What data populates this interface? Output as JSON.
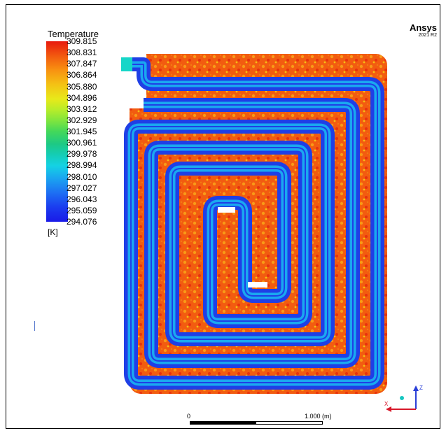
{
  "legend": {
    "title": "Temperature",
    "unit": "[K]",
    "ticks": [
      "309.815",
      "308.831",
      "307.847",
      "306.864",
      "305.880",
      "304.896",
      "303.912",
      "302.929",
      "301.945",
      "300.961",
      "299.978",
      "298.994",
      "298.010",
      "297.027",
      "296.043",
      "295.059",
      "294.076"
    ],
    "max": 309.815,
    "min": 294.076
  },
  "branding": {
    "name": "Ansys",
    "version": "2021 R2"
  },
  "scale_bar": {
    "start_label": "0",
    "end_label": "1.000 (m)"
  },
  "axes": {
    "z_label": "Z",
    "x_label": "X"
  },
  "colors": {
    "hot_field": "#f25c10",
    "pipe_cold": "#1f3fe6",
    "pipe_mid": "#1aa8f0",
    "pipe_core": "#3dd0a0",
    "inlet": "#16d6c8"
  }
}
